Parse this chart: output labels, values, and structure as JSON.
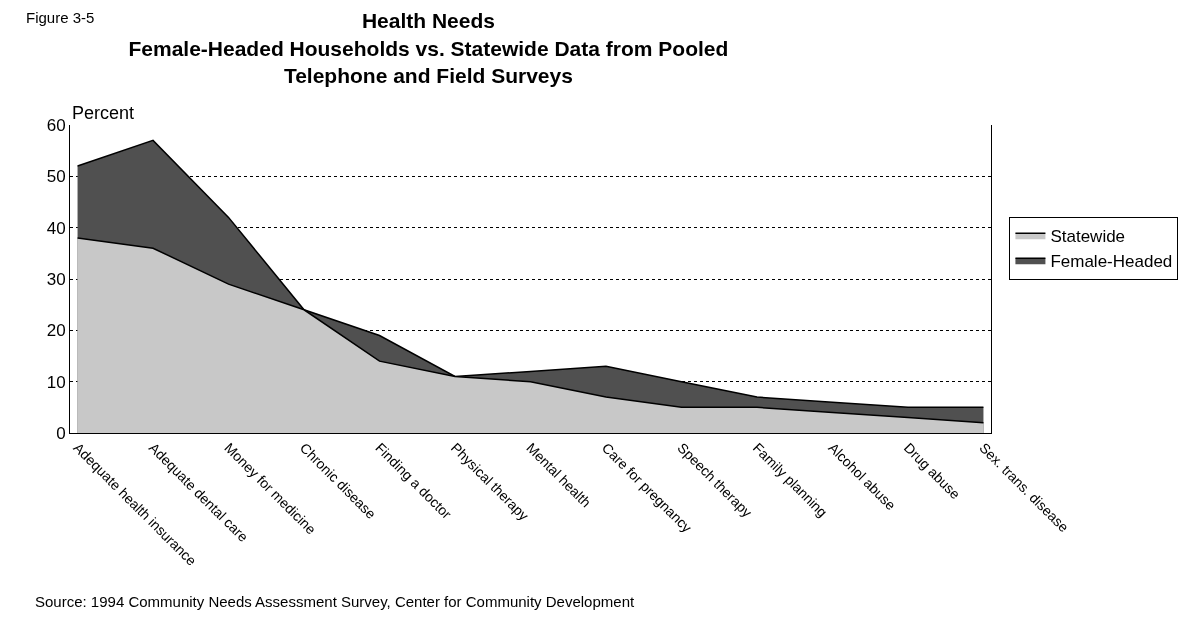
{
  "chart_data": {
    "type": "area",
    "title": "Health Needs",
    "subtitle": "Female-Headed Households vs. Statewide Data from Pooled Telephone and Field Surveys",
    "ylabel": "Percent",
    "categories": [
      "Adequate health insurance",
      "Adequate dental care",
      "Money for medicine",
      "Chronic disease",
      "Finding a doctor",
      "Physical therapy",
      "Mental health",
      "Care for pregnancy",
      "Speech therapy",
      "Family planning",
      "Alcohol abuse",
      "Drug abuse",
      "Sex. trans. disease"
    ],
    "series": [
      {
        "name": "Female-Headed",
        "color": "#505050",
        "values": [
          52,
          57,
          42,
          24,
          19,
          11,
          12,
          13,
          10,
          7,
          6,
          5,
          5
        ]
      },
      {
        "name": "Statewide",
        "color": "#c8c8c8",
        "values": [
          38,
          36,
          29,
          24,
          14,
          11,
          10,
          7,
          5,
          5,
          4,
          3,
          2
        ]
      }
    ],
    "ylim": [
      0,
      60
    ],
    "yticks": [
      0,
      10,
      20,
      30,
      40,
      50,
      60
    ],
    "grid": "y",
    "legend": "right",
    "annotations": [
      "Figure 3-5",
      "Source: 1994 Community Needs Assessment Survey, Center for Community Development"
    ]
  }
}
